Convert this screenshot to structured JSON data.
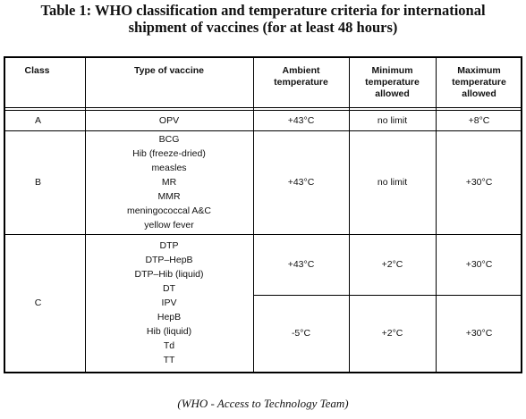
{
  "title": [
    "Table 1: WHO classification and temperature criteria for international",
    "shipment of vaccines (for at least 48 hours)"
  ],
  "table": {
    "header": [
      "Class",
      "Type of vaccine",
      "Ambient temperature",
      "Minimum temperature allowed",
      "Maximum temperature allowed"
    ],
    "rows": [
      {
        "class": "A",
        "groups": [
          {
            "vaccines": [
              "OPV"
            ],
            "ambient": "+43°C",
            "minimum": "no limit",
            "maximum": "+8°C"
          }
        ]
      },
      {
        "class": "B",
        "groups": [
          {
            "vaccines": [
              "BCG",
              "Hib (freeze-dried)",
              "measles",
              "MR",
              "MMR",
              "meningococcal A&C",
              "yellow fever"
            ],
            "ambient": "+43°C",
            "minimum": "no limit",
            "maximum": "+30°C"
          }
        ]
      },
      {
        "class": "C",
        "groups": [
          {
            "vaccines": [
              "DTP",
              "DTP–HepB",
              "DTP–Hib (liquid)",
              "DT"
            ],
            "ambient": "+43°C",
            "minimum": "+2°C",
            "maximum": "+30°C"
          },
          {
            "vaccines": [
              "IPV",
              "HepB",
              "Hib (liquid)",
              "Td",
              "TT"
            ],
            "ambient": "-5°C",
            "minimum": "+2°C",
            "maximum": "+30°C"
          }
        ]
      }
    ]
  },
  "caption": "(WHO - Access to Technology Team)"
}
